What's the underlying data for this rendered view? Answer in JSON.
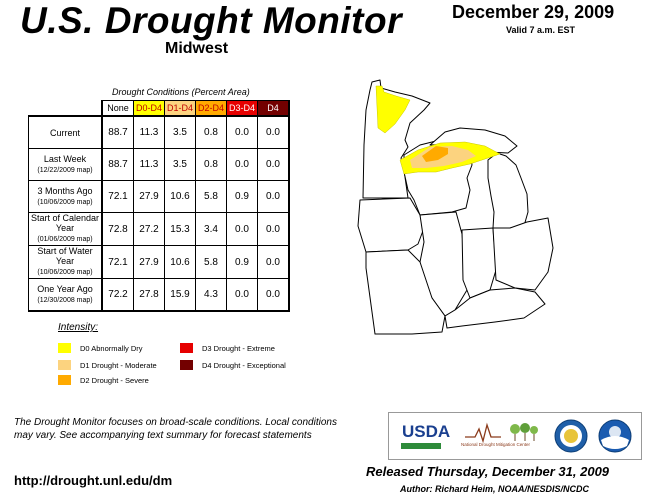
{
  "header": {
    "title": "U.S. Drought Monitor",
    "region": "Midwest",
    "date": "December 29, 2009",
    "valid": "Valid 7 a.m. EST"
  },
  "table": {
    "caption": "Drought Conditions (Percent Area)",
    "columns": [
      "None",
      "D0-D4",
      "D1-D4",
      "D2-D4",
      "D3-D4",
      "D4"
    ],
    "column_colors": [
      "#ffffff",
      "#ffff00",
      "#fcd37f",
      "#ffaa00",
      "#e60000",
      "#730000"
    ],
    "column_text_colors": [
      "#000000",
      "#c00000",
      "#c00000",
      "#c00000",
      "#ffffff",
      "#ffffff"
    ],
    "rows": [
      {
        "label": "Current",
        "sub": "",
        "values": [
          "88.7",
          "11.3",
          "3.5",
          "0.8",
          "0.0",
          "0.0"
        ]
      },
      {
        "label": "Last Week",
        "sub": "(12/22/2009 map)",
        "values": [
          "88.7",
          "11.3",
          "3.5",
          "0.8",
          "0.0",
          "0.0"
        ]
      },
      {
        "label": "3 Months Ago",
        "sub": "(10/06/2009 map)",
        "values": [
          "72.1",
          "27.9",
          "10.6",
          "5.8",
          "0.9",
          "0.0"
        ]
      },
      {
        "label": "Start of Calendar Year",
        "sub": "(01/06/2009 map)",
        "values": [
          "72.8",
          "27.2",
          "15.3",
          "3.4",
          "0.0",
          "0.0"
        ]
      },
      {
        "label": "Start of Water Year",
        "sub": "(10/06/2009 map)",
        "values": [
          "72.1",
          "27.9",
          "10.6",
          "5.8",
          "0.9",
          "0.0"
        ]
      },
      {
        "label": "One Year Ago",
        "sub": "(12/30/2008 map)",
        "values": [
          "72.2",
          "27.8",
          "15.9",
          "4.3",
          "0.0",
          "0.0"
        ]
      }
    ]
  },
  "legend": {
    "title": "Intensity:",
    "items": [
      {
        "label": "D0 Abnormally Dry",
        "color": "#ffff00"
      },
      {
        "label": "D1 Drought - Moderate",
        "color": "#fcd37f"
      },
      {
        "label": "D2 Drought - Severe",
        "color": "#ffaa00"
      },
      {
        "label": "D3 Drought - Extreme",
        "color": "#e60000"
      },
      {
        "label": "D4 Drought - Exceptional",
        "color": "#730000"
      }
    ]
  },
  "footer": {
    "note": "The Drought Monitor focuses on broad-scale conditions. Local conditions may vary. See accompanying text summary for forecast statements",
    "url": "http://drought.unl.edu/dm",
    "released": "Released Thursday, December 31, 2009",
    "author": "Author: Richard Heim, NOAA/NESDIS/NCDC"
  },
  "logos": {
    "usda": "USDA",
    "ndmc": "National Drought Mitigation Center"
  }
}
